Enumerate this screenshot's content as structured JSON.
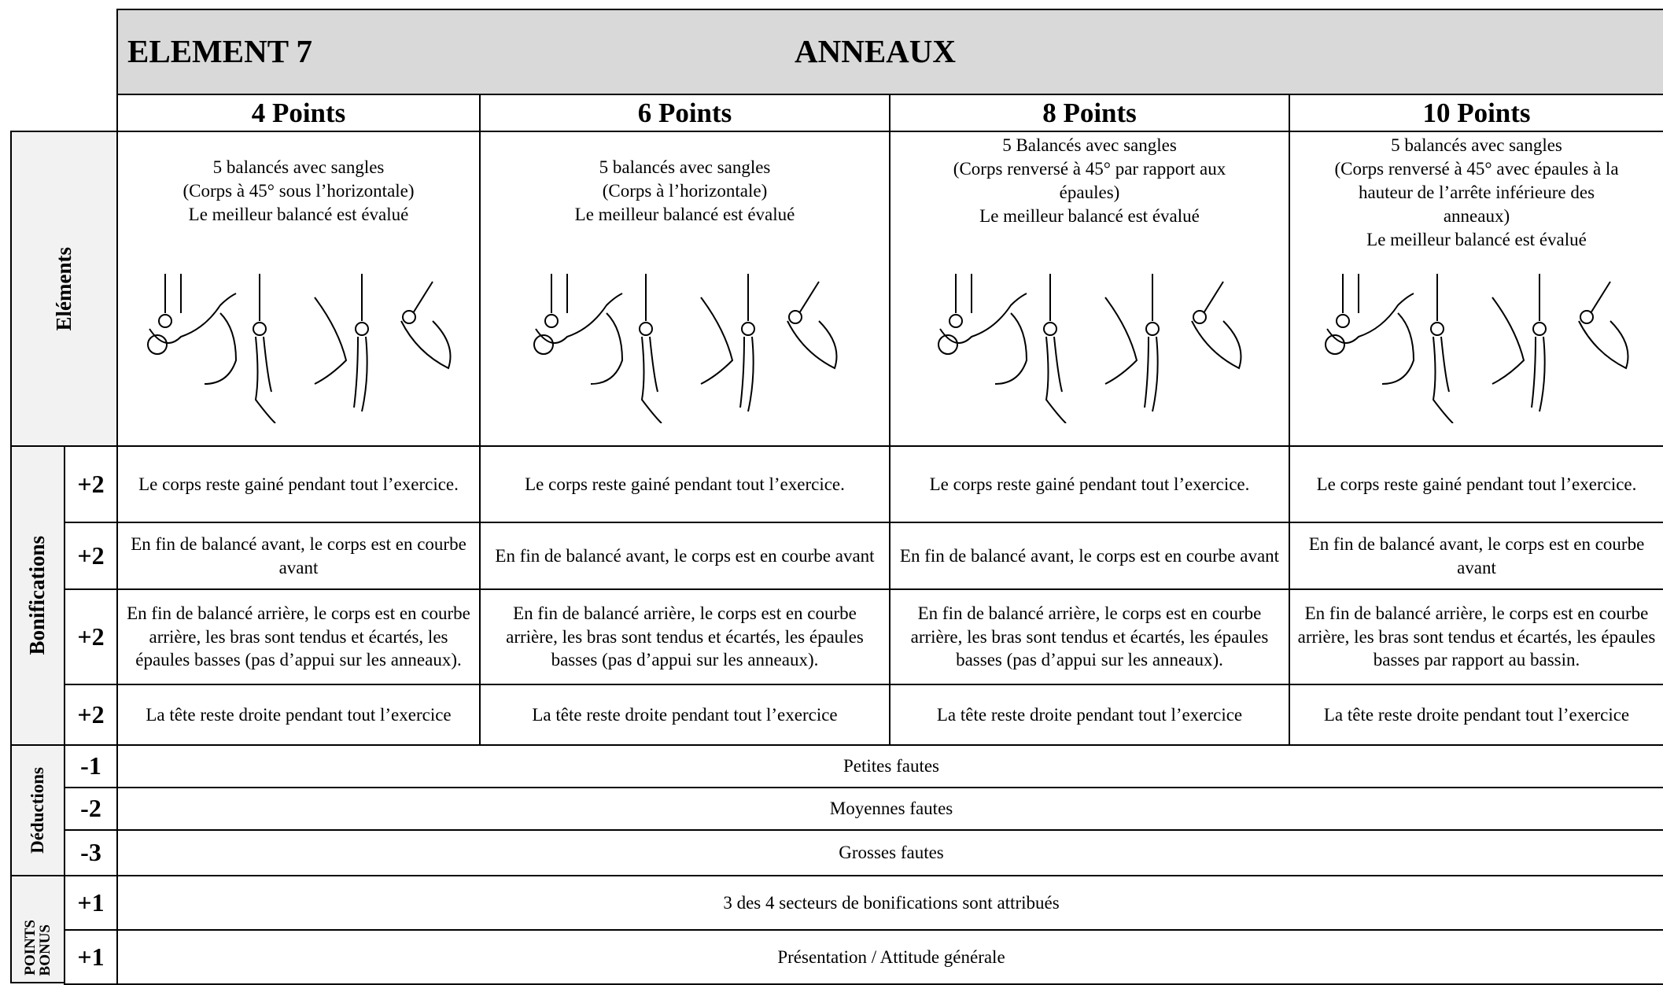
{
  "header": {
    "element": "ELEMENT 7",
    "apparatus": "ANNEAUX"
  },
  "levels": [
    "4 Points",
    "6 Points",
    "8 Points",
    "10 Points"
  ],
  "elements": {
    "label": "Eléments",
    "descriptions": [
      [
        "5 balancés avec sangles",
        "(Corps à 45° sous l’horizontale)",
        "Le meilleur balancé est évalué"
      ],
      [
        "5 balancés avec sangles",
        "(Corps à l’horizontale)",
        "Le meilleur balancé est évalué"
      ],
      [
        "5 Balancés  avec sangles",
        "(Corps renversé à 45° par rapport aux",
        "épaules)",
        "Le meilleur balancé est évalué"
      ],
      [
        "5 balancés avec sangles",
        "(Corps renversé à 45° avec épaules à la",
        "hauteur de l’arrête inférieure des",
        "anneaux)",
        "Le meilleur balancé est évalué"
      ]
    ]
  },
  "bonifications": {
    "label": "Bonifications",
    "rows": [
      {
        "score": "+2",
        "cells": [
          "Le corps reste gainé pendant tout l’exercice.",
          "Le corps reste gainé pendant tout l’exercice.",
          "Le corps reste gainé pendant tout l’exercice.",
          "Le corps reste gainé pendant tout l’exercice."
        ]
      },
      {
        "score": "+2",
        "cells": [
          "En fin de balancé avant, le corps est en courbe avant",
          "En fin de balancé avant, le corps est en courbe avant",
          "En fin de balancé avant, le corps est en courbe avant",
          "En fin de balancé avant, le corps est en courbe avant"
        ]
      },
      {
        "score": "+2",
        "cells": [
          "En fin de balancé arrière, le corps est en courbe arrière, les bras sont tendus et écartés, les épaules basses (pas d’appui sur les anneaux).",
          "En fin de balancé arrière, le corps est en courbe arrière, les bras sont tendus et écartés, les épaules basses (pas d’appui sur les anneaux).",
          "En fin de balancé arrière, le corps est en courbe arrière, les bras sont tendus et écartés, les épaules basses (pas d’appui sur les anneaux).",
          "En fin de balancé arrière, le corps est en courbe arrière, les bras sont tendus et écartés, les épaules basses par rapport au bassin."
        ]
      },
      {
        "score": "+2",
        "cells": [
          "La tête reste droite pendant tout l’exercice",
          "La tête reste droite pendant tout l’exercice",
          "La tête reste droite pendant tout l’exercice",
          "La tête reste droite pendant tout l’exercice"
        ]
      }
    ]
  },
  "deductions": {
    "label": "Déductions",
    "rows": [
      {
        "score": "-1",
        "text": "Petites fautes"
      },
      {
        "score": "-2",
        "text": "Moyennes fautes"
      },
      {
        "score": "-3",
        "text": "Grosses fautes"
      }
    ]
  },
  "bonus_points": {
    "label": [
      "POINTS",
      "BONUS"
    ],
    "rows": [
      {
        "score": "+1",
        "text": "3 des 4 secteurs de bonifications sont attribués"
      },
      {
        "score": "+1",
        "text": "Présentation / Attitude générale"
      }
    ]
  }
}
